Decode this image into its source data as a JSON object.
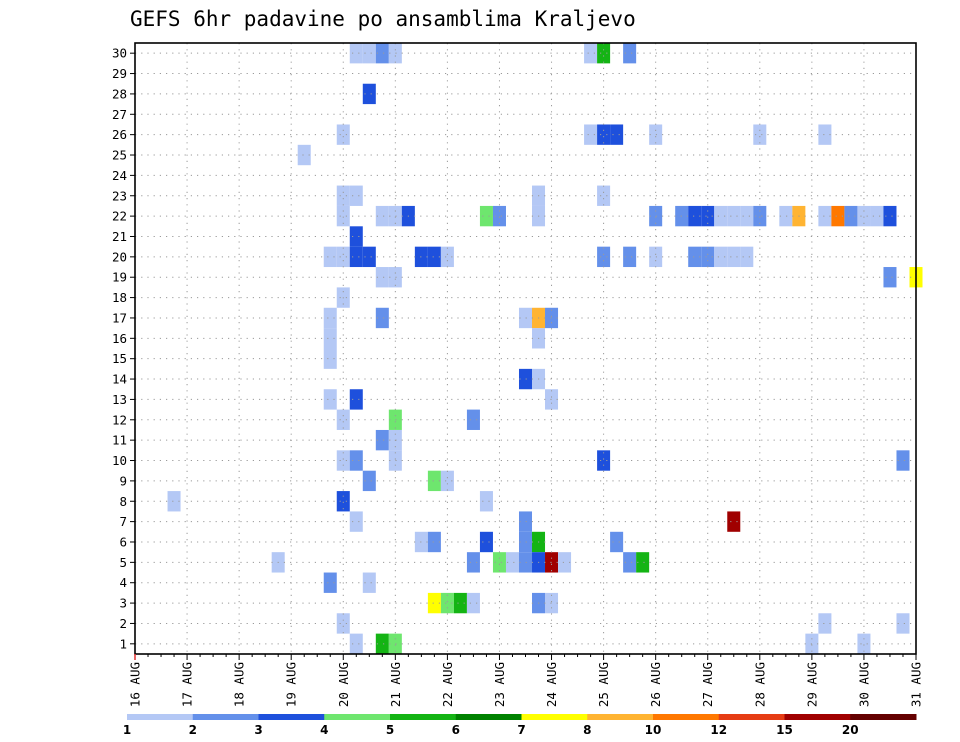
{
  "chart_data": {
    "type": "heatmap",
    "title": "GEFS 6hr padavine po ansamblima Kraljevo",
    "x_labels": [
      "16 AUG",
      "17 AUG",
      "18 AUG",
      "19 AUG",
      "20 AUG",
      "21 AUG",
      "22 AUG",
      "23 AUG",
      "24 AUG",
      "25 AUG",
      "26 AUG",
      "27 AUG",
      "28 AUG",
      "29 AUG",
      "30 AUG",
      "31 AUG"
    ],
    "y_labels": [
      "1",
      "2",
      "3",
      "4",
      "5",
      "6",
      "7",
      "8",
      "9",
      "10",
      "11",
      "12",
      "13",
      "14",
      "15",
      "16",
      "17",
      "18",
      "19",
      "20",
      "21",
      "22",
      "23",
      "24",
      "25",
      "26",
      "27",
      "28",
      "29",
      "30"
    ],
    "legend_labels": [
      "1",
      "2",
      "3",
      "4",
      "5",
      "6",
      "7",
      "8",
      "10",
      "12",
      "15",
      "20"
    ],
    "legend_colors": [
      "#b4c8f5",
      "#6490ea",
      "#1e50dc",
      "#6ee66e",
      "#14b414",
      "#008200",
      "#ffff00",
      "#ffb432",
      "#ff7800",
      "#e63c14",
      "#a00000",
      "#640000"
    ],
    "grid": true,
    "cells": [
      {
        "time": "20 AUG 06",
        "member": 30,
        "level": 1
      },
      {
        "time": "20 AUG 12",
        "member": 30,
        "level": 1
      },
      {
        "time": "20 AUG 18",
        "member": 30,
        "level": 2
      },
      {
        "time": "21 AUG 00",
        "member": 30,
        "level": 1
      },
      {
        "time": "24 AUG 18",
        "member": 30,
        "level": 1
      },
      {
        "time": "25 AUG 00",
        "member": 30,
        "level": 5
      },
      {
        "time": "25 AUG 12",
        "member": 30,
        "level": 2
      },
      {
        "time": "20 AUG 12",
        "member": 28,
        "level": 3
      },
      {
        "time": "20 AUG 00",
        "member": 26,
        "level": 1
      },
      {
        "time": "24 AUG 18",
        "member": 26,
        "level": 1
      },
      {
        "time": "25 AUG 00",
        "member": 26,
        "level": 3
      },
      {
        "time": "25 AUG 06",
        "member": 26,
        "level": 3
      },
      {
        "time": "26 AUG 00",
        "member": 26,
        "level": 1
      },
      {
        "time": "28 AUG 00",
        "member": 26,
        "level": 1
      },
      {
        "time": "29 AUG 06",
        "member": 26,
        "level": 1
      },
      {
        "time": "19 AUG 06",
        "member": 25,
        "level": 1
      },
      {
        "time": "20 AUG 00",
        "member": 23,
        "level": 1
      },
      {
        "time": "20 AUG 06",
        "member": 23,
        "level": 1
      },
      {
        "time": "23 AUG 18",
        "member": 23,
        "level": 1
      },
      {
        "time": "25 AUG 00",
        "member": 23,
        "level": 1
      },
      {
        "time": "20 AUG 00",
        "member": 22,
        "level": 1
      },
      {
        "time": "20 AUG 18",
        "member": 22,
        "level": 1
      },
      {
        "time": "21 AUG 00",
        "member": 22,
        "level": 1
      },
      {
        "time": "21 AUG 06",
        "member": 22,
        "level": 3
      },
      {
        "time": "22 AUG 18",
        "member": 22,
        "level": 4
      },
      {
        "time": "23 AUG 00",
        "member": 22,
        "level": 2
      },
      {
        "time": "23 AUG 18",
        "member": 22,
        "level": 1
      },
      {
        "time": "26 AUG 00",
        "member": 22,
        "level": 2
      },
      {
        "time": "26 AUG 12",
        "member": 22,
        "level": 2
      },
      {
        "time": "26 AUG 18",
        "member": 22,
        "level": 3
      },
      {
        "time": "27 AUG 00",
        "member": 22,
        "level": 3
      },
      {
        "time": "27 AUG 06",
        "member": 22,
        "level": 1
      },
      {
        "time": "27 AUG 12",
        "member": 22,
        "level": 1
      },
      {
        "time": "27 AUG 18",
        "member": 22,
        "level": 1
      },
      {
        "time": "28 AUG 00",
        "member": 22,
        "level": 2
      },
      {
        "time": "28 AUG 12",
        "member": 22,
        "level": 1
      },
      {
        "time": "28 AUG 18",
        "member": 22,
        "level": 8
      },
      {
        "time": "29 AUG 06",
        "member": 22,
        "level": 1
      },
      {
        "time": "29 AUG 12",
        "member": 22,
        "level": 10
      },
      {
        "time": "29 AUG 18",
        "member": 22,
        "level": 2
      },
      {
        "time": "30 AUG 00",
        "member": 22,
        "level": 1
      },
      {
        "time": "30 AUG 06",
        "member": 22,
        "level": 1
      },
      {
        "time": "30 AUG 12",
        "member": 22,
        "level": 3
      },
      {
        "time": "20 AUG 06",
        "member": 21,
        "level": 3
      },
      {
        "time": "19 AUG 18",
        "member": 20,
        "level": 1
      },
      {
        "time": "20 AUG 00",
        "member": 20,
        "level": 1
      },
      {
        "time": "20 AUG 06",
        "member": 20,
        "level": 3
      },
      {
        "time": "20 AUG 12",
        "member": 20,
        "level": 3
      },
      {
        "time": "21 AUG 12",
        "member": 20,
        "level": 3
      },
      {
        "time": "21 AUG 18",
        "member": 20,
        "level": 3
      },
      {
        "time": "22 AUG 00",
        "member": 20,
        "level": 1
      },
      {
        "time": "25 AUG 00",
        "member": 20,
        "level": 2
      },
      {
        "time": "25 AUG 12",
        "member": 20,
        "level": 2
      },
      {
        "time": "26 AUG 00",
        "member": 20,
        "level": 1
      },
      {
        "time": "26 AUG 18",
        "member": 20,
        "level": 2
      },
      {
        "time": "27 AUG 00",
        "member": 20,
        "level": 2
      },
      {
        "time": "27 AUG 06",
        "member": 20,
        "level": 1
      },
      {
        "time": "27 AUG 12",
        "member": 20,
        "level": 1
      },
      {
        "time": "27 AUG 18",
        "member": 20,
        "level": 1
      },
      {
        "time": "20 AUG 18",
        "member": 19,
        "level": 1
      },
      {
        "time": "21 AUG 00",
        "member": 19,
        "level": 1
      },
      {
        "time": "30 AUG 12",
        "member": 19,
        "level": 2
      },
      {
        "time": "31 AUG 00",
        "member": 19,
        "level": 7
      },
      {
        "time": "20 AUG 00",
        "member": 18,
        "level": 1
      },
      {
        "time": "19 AUG 18",
        "member": 17,
        "level": 1
      },
      {
        "time": "20 AUG 18",
        "member": 17,
        "level": 2
      },
      {
        "time": "23 AUG 12",
        "member": 17,
        "level": 1
      },
      {
        "time": "23 AUG 18",
        "member": 17,
        "level": 8
      },
      {
        "time": "24 AUG 00",
        "member": 17,
        "level": 2
      },
      {
        "time": "19 AUG 18",
        "member": 16,
        "level": 1
      },
      {
        "time": "23 AUG 18",
        "member": 16,
        "level": 1
      },
      {
        "time": "19 AUG 18",
        "member": 15,
        "level": 1
      },
      {
        "time": "23 AUG 12",
        "member": 14,
        "level": 3
      },
      {
        "time": "23 AUG 18",
        "member": 14,
        "level": 1
      },
      {
        "time": "19 AUG 18",
        "member": 13,
        "level": 1
      },
      {
        "time": "20 AUG 06",
        "member": 13,
        "level": 3
      },
      {
        "time": "24 AUG 00",
        "member": 13,
        "level": 1
      },
      {
        "time": "20 AUG 00",
        "member": 12,
        "level": 1
      },
      {
        "time": "21 AUG 00",
        "member": 12,
        "level": 4
      },
      {
        "time": "22 AUG 12",
        "member": 12,
        "level": 2
      },
      {
        "time": "20 AUG 18",
        "member": 11,
        "level": 2
      },
      {
        "time": "21 AUG 00",
        "member": 11,
        "level": 1
      },
      {
        "time": "20 AUG 00",
        "member": 10,
        "level": 1
      },
      {
        "time": "20 AUG 06",
        "member": 10,
        "level": 2
      },
      {
        "time": "21 AUG 00",
        "member": 10,
        "level": 1
      },
      {
        "time": "25 AUG 00",
        "member": 10,
        "level": 3
      },
      {
        "time": "30 AUG 18",
        "member": 10,
        "level": 2
      },
      {
        "time": "20 AUG 12",
        "member": 9,
        "level": 2
      },
      {
        "time": "21 AUG 18",
        "member": 9,
        "level": 4
      },
      {
        "time": "22 AUG 00",
        "member": 9,
        "level": 1
      },
      {
        "time": "16 AUG 18",
        "member": 8,
        "level": 1
      },
      {
        "time": "20 AUG 00",
        "member": 8,
        "level": 3
      },
      {
        "time": "22 AUG 18",
        "member": 8,
        "level": 1
      },
      {
        "time": "20 AUG 06",
        "member": 7,
        "level": 1
      },
      {
        "time": "23 AUG 12",
        "member": 7,
        "level": 2
      },
      {
        "time": "27 AUG 12",
        "member": 7,
        "level": 15
      },
      {
        "time": "21 AUG 12",
        "member": 6,
        "level": 1
      },
      {
        "time": "21 AUG 18",
        "member": 6,
        "level": 2
      },
      {
        "time": "22 AUG 18",
        "member": 6,
        "level": 3
      },
      {
        "time": "23 AUG 12",
        "member": 6,
        "level": 2
      },
      {
        "time": "23 AUG 18",
        "member": 6,
        "level": 5
      },
      {
        "time": "25 AUG 06",
        "member": 6,
        "level": 2
      },
      {
        "time": "18 AUG 18",
        "member": 5,
        "level": 1
      },
      {
        "time": "22 AUG 12",
        "member": 5,
        "level": 2
      },
      {
        "time": "23 AUG 00",
        "member": 5,
        "level": 4
      },
      {
        "time": "23 AUG 06",
        "member": 5,
        "level": 1
      },
      {
        "time": "23 AUG 12",
        "member": 5,
        "level": 2
      },
      {
        "time": "23 AUG 18",
        "member": 5,
        "level": 3
      },
      {
        "time": "24 AUG 00",
        "member": 5,
        "level": 15
      },
      {
        "time": "24 AUG 06",
        "member": 5,
        "level": 1
      },
      {
        "time": "25 AUG 12",
        "member": 5,
        "level": 2
      },
      {
        "time": "25 AUG 18",
        "member": 5,
        "level": 5
      },
      {
        "time": "19 AUG 18",
        "member": 4,
        "level": 2
      },
      {
        "time": "20 AUG 12",
        "member": 4,
        "level": 1
      },
      {
        "time": "21 AUG 18",
        "member": 3,
        "level": 7
      },
      {
        "time": "22 AUG 00",
        "member": 3,
        "level": 4
      },
      {
        "time": "22 AUG 06",
        "member": 3,
        "level": 5
      },
      {
        "time": "22 AUG 12",
        "member": 3,
        "level": 1
      },
      {
        "time": "23 AUG 18",
        "member": 3,
        "level": 2
      },
      {
        "time": "24 AUG 00",
        "member": 3,
        "level": 1
      },
      {
        "time": "20 AUG 00",
        "member": 2,
        "level": 1
      },
      {
        "time": "29 AUG 06",
        "member": 2,
        "level": 1
      },
      {
        "time": "30 AUG 18",
        "member": 2,
        "level": 1
      },
      {
        "time": "20 AUG 06",
        "member": 1,
        "level": 1
      },
      {
        "time": "20 AUG 18",
        "member": 1,
        "level": 5
      },
      {
        "time": "21 AUG 00",
        "member": 1,
        "level": 4
      },
      {
        "time": "29 AUG 00",
        "member": 1,
        "level": 1
      },
      {
        "time": "30 AUG 00",
        "member": 1,
        "level": 1
      }
    ]
  }
}
